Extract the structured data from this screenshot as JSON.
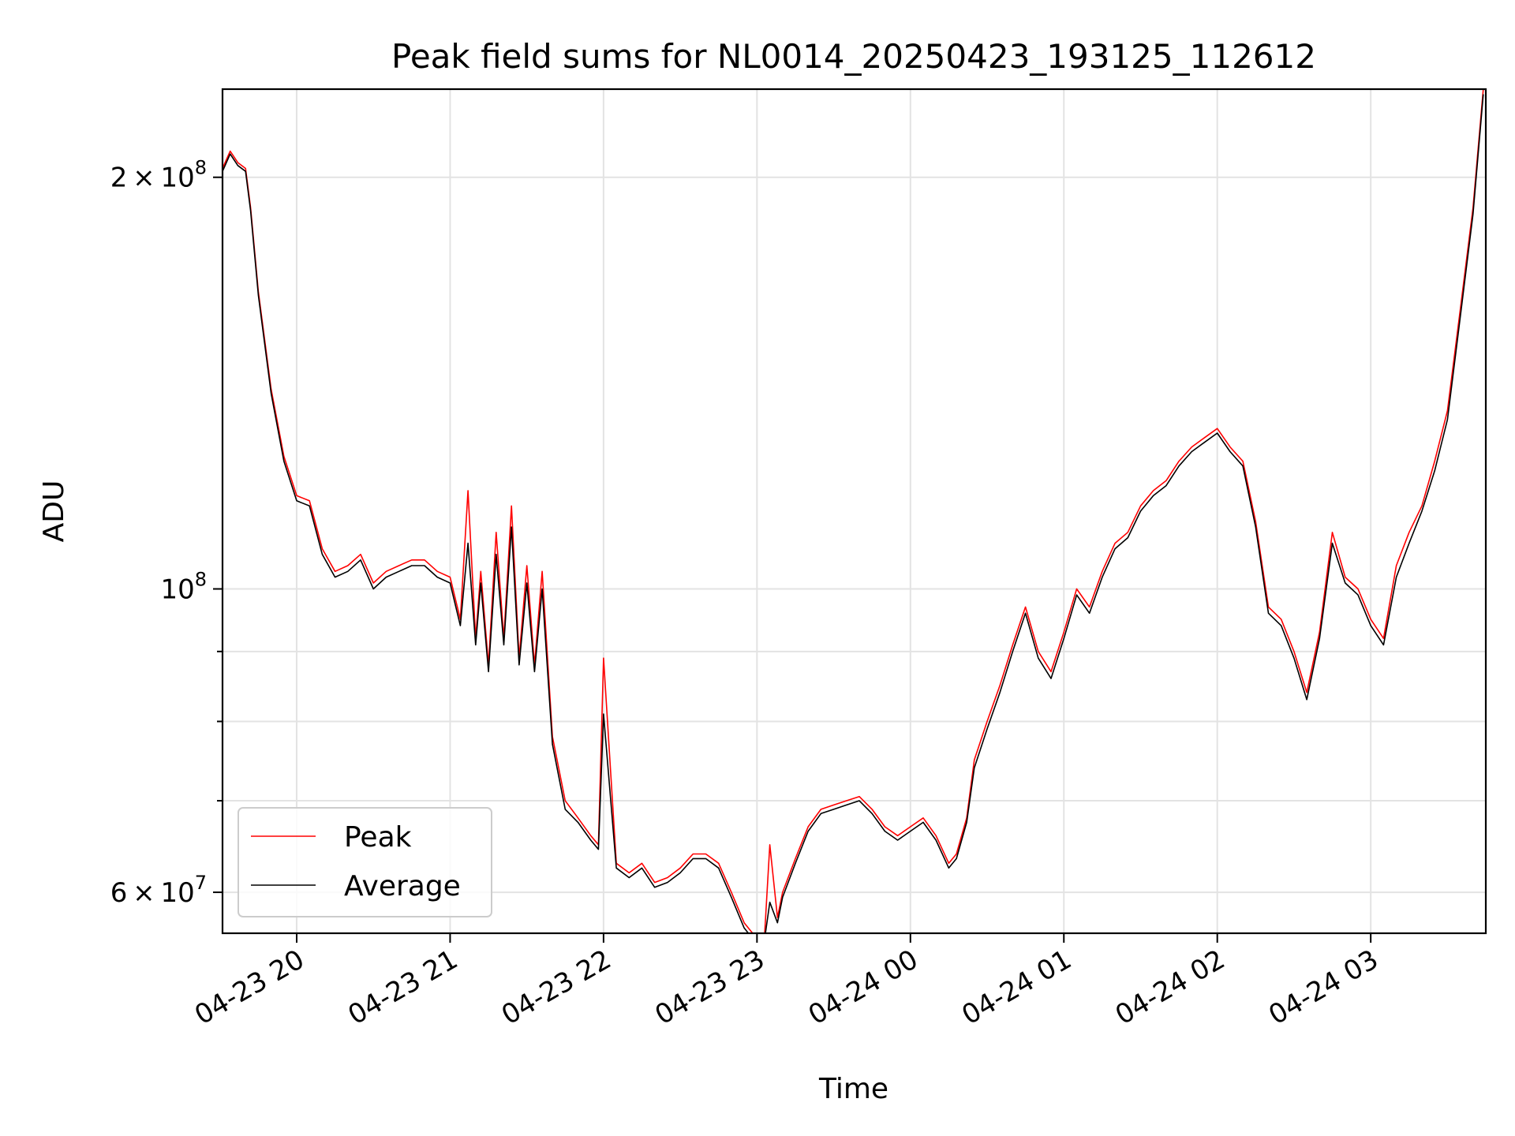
{
  "chart_data": {
    "type": "line",
    "title": "Peak field sums for NL0014_20250423_193125_112612",
    "xlabel": "Time",
    "ylabel": "ADU",
    "y_scale": "log",
    "ylim": [
      56000000,
      232000000
    ],
    "xlim": [
      "04-23 19:31",
      "04-24 03:45"
    ],
    "grid": true,
    "legend_position": "lower-left",
    "x_ticks": [
      "04-23 20",
      "04-23 21",
      "04-23 22",
      "04-23 23",
      "04-24 00",
      "04-24 01",
      "04-24 02",
      "04-24 03"
    ],
    "y_ticks": [
      {
        "value": 60000000,
        "mantissa": "6",
        "exponent": "7"
      },
      {
        "value": 100000000,
        "mantissa": "",
        "exponent": "8"
      },
      {
        "value": 200000000,
        "mantissa": "2",
        "exponent": "8"
      }
    ],
    "y_minor_grid": [
      70000000,
      80000000,
      90000000
    ],
    "series": [
      {
        "name": "Peak",
        "color": "#ff0000",
        "x": [
          "04-23 19:31",
          "04-23 19:34",
          "04-23 19:37",
          "04-23 19:40",
          "04-23 19:42",
          "04-23 19:45",
          "04-23 19:50",
          "04-23 19:55",
          "04-23 20:00",
          "04-23 20:05",
          "04-23 20:10",
          "04-23 20:15",
          "04-23 20:20",
          "04-23 20:25",
          "04-23 20:30",
          "04-23 20:35",
          "04-23 20:40",
          "04-23 20:45",
          "04-23 20:50",
          "04-23 20:55",
          "04-23 21:00",
          "04-23 21:04",
          "04-23 21:07",
          "04-23 21:10",
          "04-23 21:12",
          "04-23 21:15",
          "04-23 21:18",
          "04-23 21:21",
          "04-23 21:24",
          "04-23 21:27",
          "04-23 21:30",
          "04-23 21:33",
          "04-23 21:36",
          "04-23 21:40",
          "04-23 21:45",
          "04-23 21:50",
          "04-23 21:55",
          "04-23 21:58",
          "04-23 22:00",
          "04-23 22:05",
          "04-23 22:10",
          "04-23 22:15",
          "04-23 22:20",
          "04-23 22:25",
          "04-23 22:30",
          "04-23 22:35",
          "04-23 22:40",
          "04-23 22:45",
          "04-23 22:50",
          "04-23 22:55",
          "04-23 23:00",
          "04-23 23:03",
          "04-23 23:05",
          "04-23 23:08",
          "04-23 23:10",
          "04-23 23:15",
          "04-23 23:20",
          "04-23 23:25",
          "04-23 23:30",
          "04-23 23:35",
          "04-23 23:40",
          "04-23 23:45",
          "04-23 23:50",
          "04-23 23:55",
          "04-24 00:00",
          "04-24 00:05",
          "04-24 00:10",
          "04-24 00:15",
          "04-24 00:18",
          "04-24 00:22",
          "04-24 00:25",
          "04-24 00:30",
          "04-24 00:35",
          "04-24 00:40",
          "04-24 00:45",
          "04-24 00:50",
          "04-24 00:55",
          "04-24 01:00",
          "04-24 01:05",
          "04-24 01:10",
          "04-24 01:15",
          "04-24 01:20",
          "04-24 01:25",
          "04-24 01:30",
          "04-24 01:35",
          "04-24 01:40",
          "04-24 01:45",
          "04-24 01:50",
          "04-24 01:55",
          "04-24 02:00",
          "04-24 02:05",
          "04-24 02:10",
          "04-24 02:15",
          "04-24 02:20",
          "04-24 02:25",
          "04-24 02:30",
          "04-24 02:35",
          "04-24 02:40",
          "04-24 02:45",
          "04-24 02:50",
          "04-24 02:55",
          "04-24 03:00",
          "04-24 03:05",
          "04-24 03:10",
          "04-24 03:15",
          "04-24 03:20",
          "04-24 03:25",
          "04-24 03:30",
          "04-24 03:35",
          "04-24 03:40",
          "04-24 03:44"
        ],
        "values": [
          203000000,
          209000000,
          205000000,
          203000000,
          190000000,
          165000000,
          140000000,
          125000000,
          117000000,
          116000000,
          107000000,
          103000000,
          104000000,
          106000000,
          101000000,
          103000000,
          104000000,
          105000000,
          105000000,
          103000000,
          102000000,
          95000000,
          118000000,
          92000000,
          103000000,
          88000000,
          110000000,
          92000000,
          115000000,
          89000000,
          104000000,
          88000000,
          103000000,
          78000000,
          70000000,
          68000000,
          66000000,
          65000000,
          89000000,
          63000000,
          62000000,
          63000000,
          61000000,
          61500000,
          62500000,
          64000000,
          64000000,
          63000000,
          60000000,
          57000000,
          55500000,
          56000000,
          65000000,
          57500000,
          60000000,
          63500000,
          67000000,
          69000000,
          69500000,
          70000000,
          70500000,
          69000000,
          67000000,
          66000000,
          67000000,
          68000000,
          66000000,
          63000000,
          64000000,
          68000000,
          75000000,
          80000000,
          85000000,
          91000000,
          97000000,
          90000000,
          87000000,
          93000000,
          100000000,
          97000000,
          103000000,
          108000000,
          110000000,
          115000000,
          118000000,
          120000000,
          124000000,
          127000000,
          129000000,
          131000000,
          127000000,
          124000000,
          112000000,
          97000000,
          95000000,
          90000000,
          84000000,
          93000000,
          110000000,
          102000000,
          100000000,
          95000000,
          92000000,
          104000000,
          110000000,
          115000000,
          124000000,
          135000000,
          160000000,
          190000000,
          232000000
        ]
      },
      {
        "name": "Average",
        "color": "#000000",
        "x": [
          "04-23 19:31",
          "04-23 19:34",
          "04-23 19:37",
          "04-23 19:40",
          "04-23 19:42",
          "04-23 19:45",
          "04-23 19:50",
          "04-23 19:55",
          "04-23 20:00",
          "04-23 20:05",
          "04-23 20:10",
          "04-23 20:15",
          "04-23 20:20",
          "04-23 20:25",
          "04-23 20:30",
          "04-23 20:35",
          "04-23 20:40",
          "04-23 20:45",
          "04-23 20:50",
          "04-23 20:55",
          "04-23 21:00",
          "04-23 21:04",
          "04-23 21:07",
          "04-23 21:10",
          "04-23 21:12",
          "04-23 21:15",
          "04-23 21:18",
          "04-23 21:21",
          "04-23 21:24",
          "04-23 21:27",
          "04-23 21:30",
          "04-23 21:33",
          "04-23 21:36",
          "04-23 21:40",
          "04-23 21:45",
          "04-23 21:50",
          "04-23 21:55",
          "04-23 21:58",
          "04-23 22:00",
          "04-23 22:05",
          "04-23 22:10",
          "04-23 22:15",
          "04-23 22:20",
          "04-23 22:25",
          "04-23 22:30",
          "04-23 22:35",
          "04-23 22:40",
          "04-23 22:45",
          "04-23 22:50",
          "04-23 22:55",
          "04-23 23:00",
          "04-23 23:03",
          "04-23 23:05",
          "04-23 23:08",
          "04-23 23:10",
          "04-23 23:15",
          "04-23 23:20",
          "04-23 23:25",
          "04-23 23:30",
          "04-23 23:35",
          "04-23 23:40",
          "04-23 23:45",
          "04-23 23:50",
          "04-23 23:55",
          "04-24 00:00",
          "04-24 00:05",
          "04-24 00:10",
          "04-24 00:15",
          "04-24 00:18",
          "04-24 00:22",
          "04-24 00:25",
          "04-24 00:30",
          "04-24 00:35",
          "04-24 00:40",
          "04-24 00:45",
          "04-24 00:50",
          "04-24 00:55",
          "04-24 01:00",
          "04-24 01:05",
          "04-24 01:10",
          "04-24 01:15",
          "04-24 01:20",
          "04-24 01:25",
          "04-24 01:30",
          "04-24 01:35",
          "04-24 01:40",
          "04-24 01:45",
          "04-24 01:50",
          "04-24 01:55",
          "04-24 02:00",
          "04-24 02:05",
          "04-24 02:10",
          "04-24 02:15",
          "04-24 02:20",
          "04-24 02:25",
          "04-24 02:30",
          "04-24 02:35",
          "04-24 02:40",
          "04-24 02:45",
          "04-24 02:50",
          "04-24 02:55",
          "04-24 03:00",
          "04-24 03:05",
          "04-24 03:10",
          "04-24 03:15",
          "04-24 03:20",
          "04-24 03:25",
          "04-24 03:30",
          "04-24 03:35",
          "04-24 03:40",
          "04-24 03:44"
        ],
        "values": [
          202000000,
          208000000,
          204000000,
          202000000,
          189000000,
          164000000,
          139000000,
          124000000,
          116000000,
          115000000,
          106000000,
          102000000,
          103000000,
          105000000,
          100000000,
          102000000,
          103000000,
          104000000,
          104000000,
          102000000,
          101000000,
          94000000,
          108000000,
          91000000,
          101000000,
          87000000,
          106000000,
          91000000,
          111000000,
          88000000,
          101000000,
          87000000,
          100000000,
          77000000,
          69000000,
          67500000,
          65500000,
          64500000,
          81000000,
          62500000,
          61500000,
          62500000,
          60500000,
          61000000,
          62000000,
          63500000,
          63500000,
          62500000,
          59500000,
          56500000,
          55000000,
          55500000,
          59000000,
          57000000,
          59500000,
          63000000,
          66500000,
          68500000,
          69000000,
          69500000,
          70000000,
          68500000,
          66500000,
          65500000,
          66500000,
          67500000,
          65500000,
          62500000,
          63500000,
          67500000,
          74000000,
          79000000,
          84000000,
          90000000,
          96000000,
          89000000,
          86000000,
          92000000,
          99000000,
          96000000,
          102000000,
          107000000,
          109000000,
          114000000,
          117000000,
          119000000,
          123000000,
          126000000,
          128000000,
          130000000,
          126000000,
          123000000,
          111000000,
          96000000,
          94000000,
          89000000,
          83000000,
          92000000,
          108000000,
          101000000,
          99000000,
          94000000,
          91000000,
          102000000,
          108000000,
          114000000,
          122000000,
          133000000,
          158000000,
          188000000,
          230000000
        ]
      }
    ]
  }
}
